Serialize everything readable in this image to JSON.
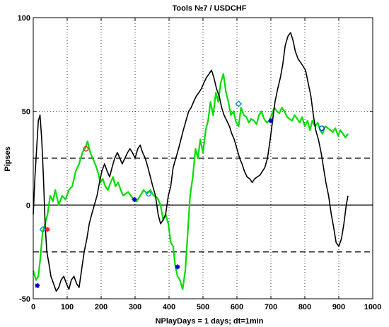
{
  "chart_data": {
    "type": "line",
    "title": "Tools  №7 / USDCHF",
    "xlabel": "NPlayDays = 1 days;  dt=1min",
    "ylabel": "Pipses",
    "xlim": [
      0,
      1000
    ],
    "ylim": [
      -50,
      100
    ],
    "xticks": [
      0,
      100,
      200,
      300,
      400,
      500,
      600,
      700,
      800,
      900,
      1000
    ],
    "yticks": [
      -50,
      0,
      50,
      100
    ],
    "grid": true,
    "reference_lines": [
      {
        "y": 0,
        "style": "solid",
        "color": "#000000"
      },
      {
        "y": 25,
        "style": "dashed",
        "color": "#000000"
      },
      {
        "y": -25,
        "style": "dashed",
        "color": "#000000"
      }
    ],
    "series": [
      {
        "color": "#00dd00",
        "x": [
          0,
          8,
          15,
          20,
          28,
          35,
          42,
          50,
          58,
          65,
          75,
          85,
          95,
          105,
          115,
          125,
          135,
          145,
          152,
          160,
          168,
          175,
          182,
          190,
          198,
          205,
          212,
          220,
          228,
          235,
          242,
          250,
          258,
          265,
          272,
          280,
          288,
          295,
          305,
          315,
          325,
          335,
          345,
          355,
          365,
          375,
          383,
          390,
          398,
          405,
          412,
          418,
          425,
          432,
          440,
          448,
          455,
          462,
          470,
          478,
          485,
          492,
          500,
          508,
          515,
          522,
          530,
          538,
          545,
          552,
          560,
          568,
          575,
          582,
          590,
          598,
          605,
          612,
          620,
          628,
          635,
          642,
          650,
          658,
          665,
          672,
          680,
          688,
          695,
          702,
          710,
          718,
          725,
          732,
          740,
          748,
          755,
          762,
          770,
          778,
          785,
          792,
          800,
          808,
          815,
          822,
          830,
          838,
          845,
          852,
          860,
          868,
          875,
          882,
          890,
          898,
          905,
          912,
          920,
          927
        ],
        "values": [
          -35,
          -40,
          -38,
          -30,
          -14,
          -10,
          -5,
          5,
          2,
          8,
          0,
          5,
          3,
          8,
          10,
          18,
          22,
          28,
          30,
          34,
          28,
          25,
          22,
          18,
          12,
          14,
          10,
          8,
          12,
          15,
          10,
          12,
          8,
          5,
          6,
          7,
          5,
          3,
          2,
          5,
          8,
          6,
          8,
          5,
          4,
          0,
          -8,
          -5,
          -10,
          -20,
          -22,
          -32,
          -38,
          -40,
          -45,
          -35,
          -15,
          5,
          15,
          30,
          25,
          35,
          28,
          40,
          45,
          55,
          48,
          60,
          55,
          65,
          70,
          60,
          55,
          48,
          50,
          44,
          42,
          52,
          48,
          47,
          44,
          46,
          45,
          43,
          48,
          50,
          46,
          44,
          45,
          48,
          52,
          50,
          49,
          52,
          50,
          47,
          46,
          45,
          48,
          46,
          44,
          47,
          42,
          45,
          40,
          45,
          42,
          44,
          40,
          38,
          42,
          41,
          40,
          39,
          41,
          37,
          40,
          38,
          36,
          38
        ]
      },
      {
        "color": "#000000",
        "x": [
          0,
          5,
          10,
          15,
          20,
          25,
          30,
          35,
          40,
          45,
          52,
          60,
          68,
          75,
          82,
          90,
          98,
          105,
          112,
          120,
          128,
          135,
          142,
          150,
          158,
          165,
          172,
          180,
          188,
          195,
          202,
          210,
          218,
          225,
          232,
          240,
          248,
          255,
          262,
          270,
          278,
          285,
          292,
          300,
          308,
          315,
          322,
          330,
          338,
          345,
          352,
          360,
          368,
          375,
          382,
          390,
          398,
          405,
          412,
          420,
          428,
          435,
          442,
          450,
          458,
          465,
          472,
          480,
          488,
          495,
          502,
          510,
          518,
          525,
          532,
          540,
          548,
          555,
          562,
          570,
          578,
          585,
          592,
          600,
          608,
          615,
          622,
          630,
          638,
          645,
          652,
          660,
          668,
          675,
          682,
          690,
          698,
          705,
          712,
          720,
          728,
          735,
          742,
          750,
          758,
          765,
          772,
          780,
          788,
          795,
          802,
          810,
          818,
          825,
          832,
          840,
          848,
          855,
          862,
          870,
          878,
          885,
          892,
          900,
          908,
          915,
          922,
          927
        ],
        "values": [
          -5,
          15,
          30,
          45,
          48,
          35,
          15,
          -10,
          -25,
          -30,
          -38,
          -42,
          -46,
          -44,
          -40,
          -38,
          -42,
          -45,
          -40,
          -38,
          -42,
          -44,
          -35,
          -25,
          -18,
          -10,
          -5,
          0,
          5,
          12,
          18,
          22,
          18,
          15,
          20,
          25,
          28,
          25,
          22,
          25,
          28,
          30,
          28,
          25,
          30,
          32,
          28,
          25,
          20,
          15,
          10,
          5,
          -5,
          -10,
          -8,
          -5,
          5,
          10,
          20,
          25,
          30,
          35,
          40,
          45,
          50,
          52,
          55,
          58,
          60,
          62,
          65,
          68,
          70,
          72,
          68,
          62,
          58,
          52,
          48,
          45,
          42,
          38,
          35,
          30,
          25,
          22,
          18,
          15,
          14,
          12,
          14,
          15,
          16,
          18,
          20,
          25,
          35,
          45,
          55,
          62,
          68,
          75,
          85,
          90,
          92,
          88,
          82,
          78,
          76,
          74,
          72,
          65,
          58,
          48,
          40,
          35,
          28,
          20,
          12,
          5,
          -5,
          -12,
          -20,
          -22,
          -18,
          -10,
          0,
          5
        ]
      }
    ],
    "markers": [
      {
        "x": 12,
        "y": -43,
        "symbol": "star",
        "color": "#0000cc"
      },
      {
        "x": 28,
        "y": -13,
        "symbol": "diamond",
        "color": "#1a8fd0"
      },
      {
        "x": 42,
        "y": -13,
        "symbol": "star",
        "color": "#ff2020"
      },
      {
        "x": 155,
        "y": 30,
        "symbol": "circle",
        "color": "#d04010"
      },
      {
        "x": 298,
        "y": 3,
        "symbol": "star",
        "color": "#0000cc"
      },
      {
        "x": 340,
        "y": 6,
        "symbol": "circle",
        "color": "#1a8fd0"
      },
      {
        "x": 425,
        "y": -33,
        "symbol": "star",
        "color": "#0000cc"
      },
      {
        "x": 605,
        "y": 54,
        "symbol": "diamond",
        "color": "#1a8fd0"
      },
      {
        "x": 700,
        "y": 45,
        "symbol": "star",
        "color": "#0000cc"
      },
      {
        "x": 850,
        "y": 41,
        "symbol": "circle",
        "color": "#0044cc"
      }
    ]
  }
}
